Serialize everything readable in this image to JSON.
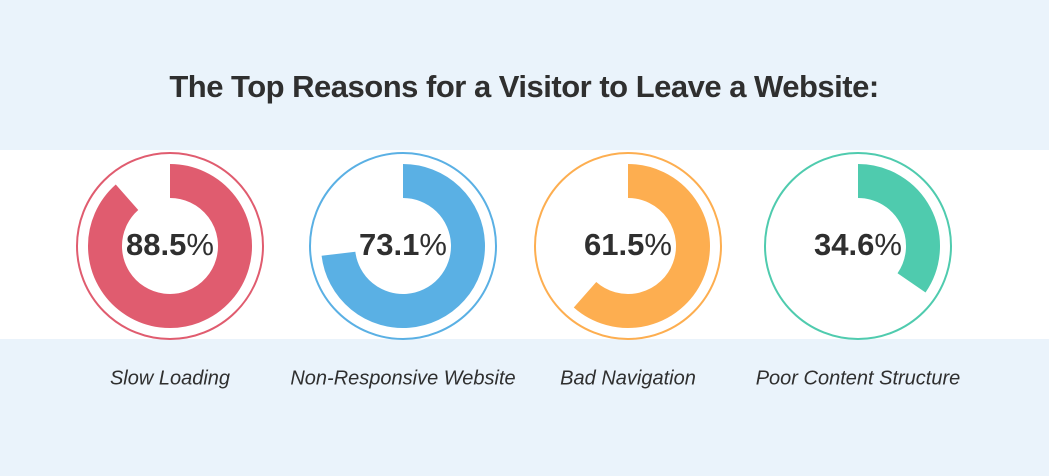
{
  "chart_data": {
    "type": "progress-ring",
    "title": "The Top Reasons for a Visitor to Leave a Website:",
    "categories": [
      "Slow Loading",
      "Non-Responsive Website",
      "Bad Navigation",
      "Poor Content Structure"
    ],
    "values": [
      88.5,
      73.1,
      61.5,
      34.6
    ],
    "unit": "%",
    "colors": [
      "#e05c6f",
      "#5ab0e4",
      "#fdae50",
      "#4fcbae"
    ],
    "ylim": [
      0,
      100
    ]
  }
}
